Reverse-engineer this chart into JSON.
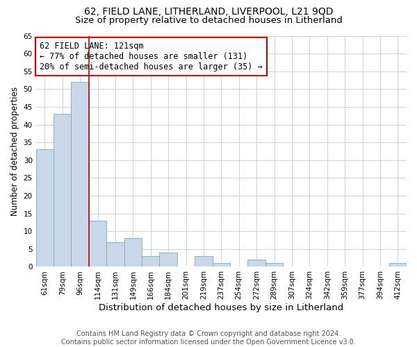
{
  "title1": "62, FIELD LANE, LITHERLAND, LIVERPOOL, L21 9QD",
  "title2": "Size of property relative to detached houses in Litherland",
  "xlabel": "Distribution of detached houses by size in Litherland",
  "ylabel": "Number of detached properties",
  "bar_color": "#c8d8e8",
  "bar_edge_color": "#7aaabf",
  "categories": [
    "61sqm",
    "79sqm",
    "96sqm",
    "114sqm",
    "131sqm",
    "149sqm",
    "166sqm",
    "184sqm",
    "201sqm",
    "219sqm",
    "237sqm",
    "254sqm",
    "272sqm",
    "289sqm",
    "307sqm",
    "324sqm",
    "342sqm",
    "359sqm",
    "377sqm",
    "394sqm",
    "412sqm"
  ],
  "values": [
    33,
    43,
    52,
    13,
    7,
    8,
    3,
    4,
    0,
    3,
    1,
    0,
    2,
    1,
    0,
    0,
    0,
    0,
    0,
    0,
    1
  ],
  "vline_index": 2.5,
  "vline_color": "#cc0000",
  "ylim": [
    0,
    65
  ],
  "yticks": [
    0,
    5,
    10,
    15,
    20,
    25,
    30,
    35,
    40,
    45,
    50,
    55,
    60,
    65
  ],
  "annotation_title": "62 FIELD LANE: 121sqm",
  "annotation_line1": "← 77% of detached houses are smaller (131)",
  "annotation_line2": "20% of semi-detached houses are larger (35) →",
  "annotation_box_color": "#ffffff",
  "annotation_border_color": "#cc0000",
  "footer1": "Contains HM Land Registry data © Crown copyright and database right 2024.",
  "footer2": "Contains public sector information licensed under the Open Government Licence v3.0.",
  "background_color": "#ffffff",
  "grid_color": "#c0ccd8",
  "title1_fontsize": 10,
  "title2_fontsize": 9.5,
  "xlabel_fontsize": 9.5,
  "ylabel_fontsize": 8.5,
  "footer_fontsize": 7.0,
  "tick_fontsize": 7.5,
  "annot_fontsize": 8.5
}
